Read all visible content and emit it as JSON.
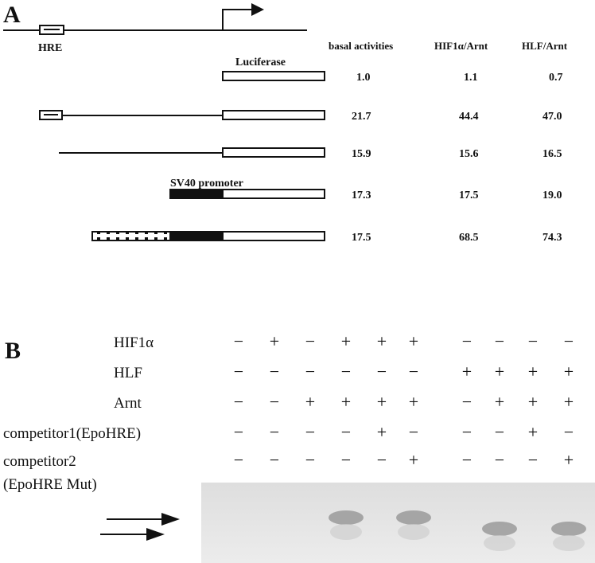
{
  "panel_a": {
    "letter": "A",
    "hre_label": "HRE",
    "luciferase_label": "Luciferase",
    "sv40_label": "SV40 promoter",
    "columns": [
      "basal activities",
      "HIF1α/Arnt",
      "HLF/Arnt"
    ],
    "rows": [
      {
        "construct": "luciferase-only",
        "values": [
          "1.0",
          "1.1",
          "0.7"
        ]
      },
      {
        "construct": "hre-promoter-luciferase",
        "values": [
          "21.7",
          "44.4",
          "47.0"
        ]
      },
      {
        "construct": "promoter-luciferase",
        "values": [
          "15.9",
          "15.6",
          "16.5"
        ]
      },
      {
        "construct": "sv40-luciferase",
        "values": [
          "17.3",
          "17.5",
          "19.0"
        ]
      },
      {
        "construct": "hre-repeats-sv40-luciferase",
        "values": [
          "17.5",
          "68.5",
          "74.3"
        ]
      }
    ]
  },
  "panel_b": {
    "letter": "B",
    "factors": [
      {
        "label": "HIF1α",
        "signs": [
          "−",
          "+",
          "−",
          "+",
          "+",
          "+",
          "−",
          "−",
          "−",
          "−"
        ]
      },
      {
        "label": "HLF",
        "signs": [
          "−",
          "−",
          "−",
          "−",
          "−",
          "−",
          "+",
          "+",
          "+",
          "+"
        ]
      },
      {
        "label": "Arnt",
        "signs": [
          "−",
          "−",
          "+",
          "+",
          "+",
          "+",
          "−",
          "+",
          "+",
          "+"
        ]
      },
      {
        "label": "competitor1(EpoHRE)",
        "signs": [
          "−",
          "−",
          "−",
          "−",
          "+",
          "−",
          "−",
          "−",
          "+",
          "−"
        ]
      },
      {
        "label": "competitor2",
        "label2": "(EpoHRE Mut)",
        "signs": [
          "−",
          "−",
          "−",
          "−",
          "−",
          "+",
          "−",
          "−",
          "−",
          "+"
        ]
      }
    ],
    "bands": [
      {
        "lane": 4,
        "level": "upper"
      },
      {
        "lane": 6,
        "level": "upper"
      },
      {
        "lane": 8,
        "level": "lower"
      },
      {
        "lane": 10,
        "level": "lower"
      }
    ]
  },
  "colors": {
    "gel_background": "#e6e6e6",
    "band": "#9a9a9a"
  }
}
